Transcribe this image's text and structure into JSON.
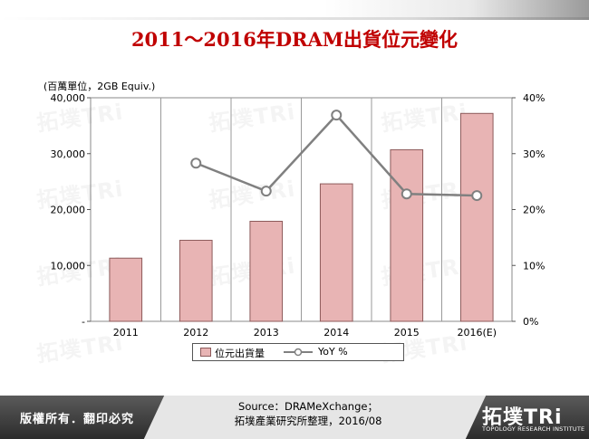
{
  "title": "2011～2016年DRAM出貨位元變化",
  "footer": {
    "copyright": "版權所有．翻印必究",
    "source_line1": "Source：DRAMeXchange；",
    "source_line2": "拓墣產業研究所整理，2016/08",
    "logo_text": "拓墣TRi",
    "logo_sub": "TOPOLOGY RESEARCH INSTITUTE"
  },
  "watermark_text": "拓墣TRi",
  "chart_data": {
    "type": "bar",
    "categories": [
      "2011",
      "2012",
      "2013",
      "2014",
      "2015",
      "2016(E)"
    ],
    "unit_label": "(百萬單位，2GB Equiv.)",
    "y_left": {
      "ticks": [
        "-",
        "10,000",
        "20,000",
        "30,000",
        "40,000"
      ],
      "tick_values": [
        0,
        10000,
        20000,
        30000,
        40000
      ],
      "lim": [
        0,
        40000
      ]
    },
    "y_right": {
      "ticks": [
        "0%",
        "10%",
        "20%",
        "30%",
        "40%"
      ],
      "tick_values": [
        0,
        10,
        20,
        30,
        40
      ],
      "lim": [
        0,
        40
      ]
    },
    "series": [
      {
        "name": "位元出貨量",
        "type": "bar",
        "axis": "left",
        "values": [
          11300,
          14500,
          17900,
          24600,
          30700,
          37200
        ]
      },
      {
        "name": "YoY %",
        "type": "line",
        "axis": "right",
        "values": [
          null,
          28.3,
          23.3,
          36.9,
          22.8,
          22.5
        ]
      }
    ],
    "colors": {
      "bar_fill": "#e8b4b4",
      "bar_stroke": "#8c5a5a",
      "line": "#808080",
      "marker_fill": "#ffffff"
    },
    "grid": "vertical-category-lines",
    "legend_position": "bottom"
  }
}
